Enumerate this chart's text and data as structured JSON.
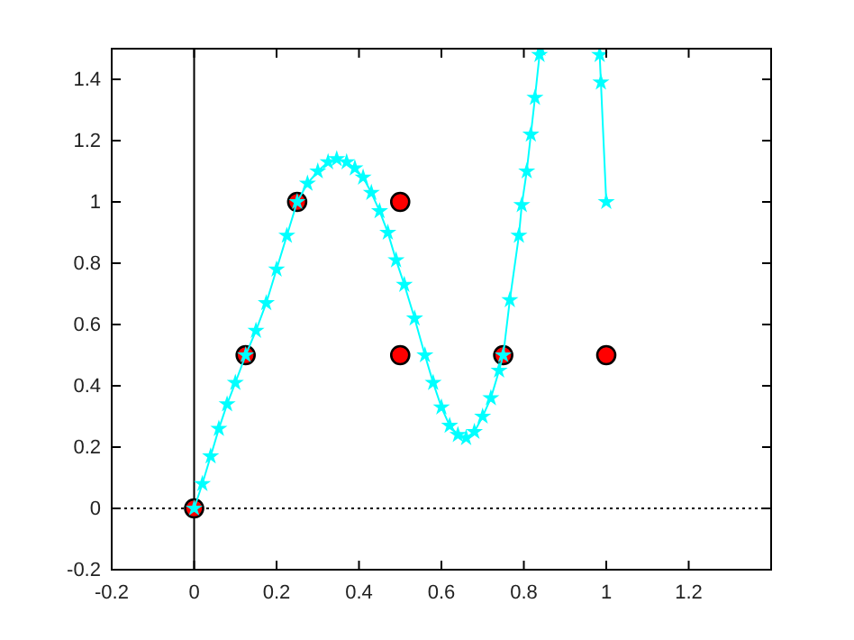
{
  "chart_data": {
    "type": "scatter",
    "xlim": [
      -0.2,
      1.4
    ],
    "ylim": [
      -0.2,
      1.5
    ],
    "xticks": [
      -0.2,
      0,
      0.2,
      0.4,
      0.6,
      0.8,
      1,
      1.2
    ],
    "yticks": [
      -0.2,
      0,
      0.2,
      0.4,
      0.6,
      0.8,
      1,
      1.2,
      1.4
    ],
    "grid": false,
    "series": [
      {
        "color": "#ff0000",
        "marker": "circle",
        "x": [
          0,
          0.125,
          0.25,
          0.5,
          0.5,
          0.75,
          1
        ],
        "values": [
          0,
          0.5,
          1,
          1,
          0.5,
          0.5,
          0.5
        ]
      },
      {
        "type": "line",
        "color": "#00ffff",
        "marker": "star",
        "line_style": "solid",
        "x": [
          0,
          0.02,
          0.04,
          0.06,
          0.08,
          0.1,
          0.125,
          0.15,
          0.175,
          0.2,
          0.225,
          0.25,
          0.275,
          0.3,
          0.325,
          0.346,
          0.37,
          0.39,
          0.41,
          0.43,
          0.45,
          0.47,
          0.49,
          0.51,
          0.535,
          0.56,
          0.58,
          0.6,
          0.62,
          0.64,
          0.66,
          0.68,
          0.7,
          0.72,
          0.74,
          0.75,
          0.766,
          0.788,
          0.795,
          0.807,
          0.817,
          0.827,
          0.838,
          0.84,
          0.9,
          0.984,
          0.987,
          1
        ],
        "values": [
          0,
          0.08,
          0.17,
          0.26,
          0.34,
          0.41,
          0.5,
          0.58,
          0.67,
          0.78,
          0.89,
          1,
          1.06,
          1.1,
          1.13,
          1.14,
          1.13,
          1.11,
          1.08,
          1.03,
          0.97,
          0.9,
          0.81,
          0.73,
          0.62,
          0.5,
          0.41,
          0.33,
          0.27,
          0.24,
          0.23,
          0.25,
          0.3,
          0.36,
          0.45,
          0.5,
          0.68,
          0.89,
          0.99,
          1.1,
          1.22,
          1.34,
          1.48,
          1.5,
          null,
          1.48,
          1.39,
          1
        ]
      }
    ],
    "ref_lines": [
      {
        "axis": "x",
        "value": 0,
        "color": "#000000",
        "line_style": "solid"
      },
      {
        "axis": "y",
        "value": 0,
        "color": "#000000",
        "line_style": "dotted"
      }
    ]
  }
}
